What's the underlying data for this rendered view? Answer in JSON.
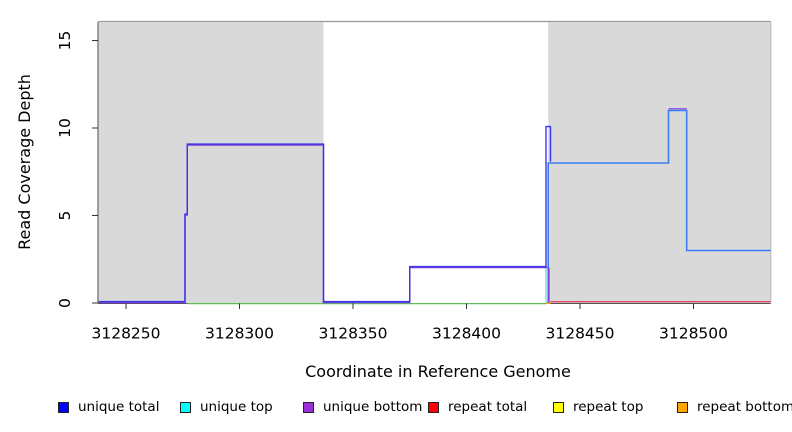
{
  "figure": {
    "background": "#FFFFFF"
  },
  "y_axis": {
    "label": "Read Coverage Depth",
    "ticks": [
      "0",
      "5",
      "10",
      "15"
    ]
  },
  "x_axis": {
    "label": "Coordinate in Reference Genome",
    "ticks": [
      "3128250",
      "3128300",
      "3128350",
      "3128400",
      "3128450",
      "3128500"
    ]
  },
  "legend": {
    "items": [
      {
        "label": "unique total",
        "color": "#0000FF"
      },
      {
        "label": "unique top",
        "color": "#00FFFF"
      },
      {
        "label": "unique bottom",
        "color": "#9B30D9"
      },
      {
        "label": "repeat total",
        "color": "#FF0000"
      },
      {
        "label": "repeat top",
        "color": "#FFFF00"
      },
      {
        "label": "repeat bottom",
        "color": "#FFA500"
      }
    ]
  },
  "chart_data": {
    "type": "line",
    "subtype": "step-coverage",
    "title": "",
    "xlabel": "Coordinate in Reference Genome",
    "ylabel": "Read Coverage Depth",
    "xlim": [
      3128238,
      3128534
    ],
    "ylim": [
      0,
      16
    ],
    "x_tick_values": [
      3128250,
      3128300,
      3128350,
      3128400,
      3128450,
      3128500
    ],
    "y_tick_values": [
      0,
      5,
      10,
      15
    ],
    "grid": false,
    "legend_position": "bottom",
    "highlight_regions": {
      "color": "#D9D9D9",
      "ranges": [
        [
          3128238,
          3128337
        ],
        [
          3128436,
          3128534
        ]
      ]
    },
    "series": [
      {
        "name": "unique-top-repeat-top-overlap-at-zero",
        "color": "#5ECC5E",
        "width": 1.2,
        "dy": 0.7,
        "points": [
          [
            3128277,
            0
          ],
          [
            3128435,
            0
          ]
        ]
      },
      {
        "name": "repeat-bottom",
        "color": "#FFA500",
        "width": 1.6,
        "dy": 0.2,
        "points": [
          [
            3128435,
            0
          ],
          [
            3128437,
            0
          ]
        ]
      },
      {
        "name": "repeat-total",
        "color": "#DD4466",
        "width": 1.4,
        "dy": -1.3,
        "points": [
          [
            3128437,
            0
          ],
          [
            3128534,
            0
          ]
        ]
      },
      {
        "name": "unique-top-rise-to-2",
        "color": "#7FE4E0",
        "width": 1.6,
        "dy": 0,
        "points": [
          [
            3128435,
            0
          ],
          [
            3128435,
            2
          ]
        ]
      },
      {
        "name": "unique-bottom-drop-to-0",
        "color": "#B565DC",
        "width": 1.6,
        "dy": 0,
        "points": [
          [
            3128436.4,
            0
          ],
          [
            3128436.4,
            2
          ]
        ]
      },
      {
        "name": "unique-bottom",
        "color": "#7C3BD9",
        "width": 1.4,
        "dy": -0.5,
        "points": [
          [
            3128238,
            0
          ],
          [
            3128276,
            0
          ],
          [
            3128276,
            5
          ],
          [
            3128277,
            5
          ],
          [
            3128277,
            9
          ],
          [
            3128337,
            9
          ],
          [
            3128337,
            0
          ],
          [
            3128375,
            0
          ],
          [
            3128375,
            2
          ],
          [
            3128436,
            2
          ],
          [
            3128436,
            0
          ]
        ]
      },
      {
        "name": "unique-total",
        "color": "#3A36EB",
        "width": 1.4,
        "dy": -1.4,
        "points": [
          [
            3128238,
            0
          ],
          [
            3128276,
            0
          ],
          [
            3128276,
            5
          ],
          [
            3128277,
            5
          ],
          [
            3128277,
            9
          ],
          [
            3128337,
            9
          ],
          [
            3128337,
            0
          ],
          [
            3128375,
            0
          ],
          [
            3128375,
            2
          ],
          [
            3128435,
            2
          ],
          [
            3128435,
            10
          ],
          [
            3128437,
            10
          ],
          [
            3128437,
            8
          ]
        ]
      },
      {
        "name": "unique-total-right-region",
        "color": "#3B7DF2",
        "width": 1.6,
        "dy": 0,
        "points": [
          [
            3128436,
            2
          ],
          [
            3128436,
            8
          ],
          [
            3128489,
            8
          ],
          [
            3128489,
            11
          ],
          [
            3128497,
            11
          ],
          [
            3128497,
            3
          ],
          [
            3128534,
            3
          ]
        ]
      },
      {
        "name": "unique-bottom-cap-at-11",
        "color": "#7C3BD9",
        "width": 1.2,
        "dy": -1.7,
        "points": [
          [
            3128489,
            11
          ],
          [
            3128497,
            11
          ]
        ]
      }
    ]
  }
}
